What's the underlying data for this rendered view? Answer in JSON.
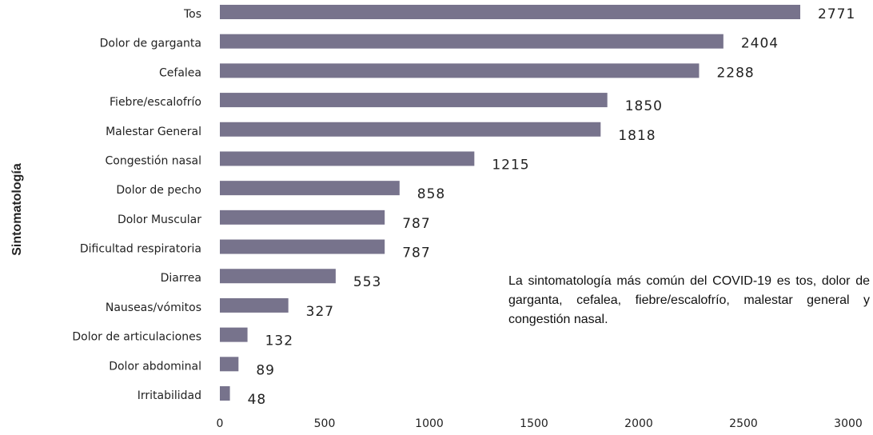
{
  "chart_data": {
    "type": "bar",
    "orientation": "horizontal",
    "y_label": "Sintomatología",
    "categories": [
      "Tos",
      "Dolor de garganta",
      "Cefalea",
      "Fiebre/escalofrío",
      "Malestar General",
      "Congestión nasal",
      "Dolor de pecho",
      "Dolor Muscular",
      "Dificultad respiratoria",
      "Diarrea",
      "Nauseas/vómitos",
      "Dolor de articulaciones",
      "Dolor abdominal",
      "Irritabilidad"
    ],
    "values": [
      2771,
      2404,
      2288,
      1850,
      1818,
      1215,
      858,
      787,
      787,
      553,
      327,
      132,
      89,
      48
    ],
    "color": "#77738c",
    "xlim": [
      0,
      3000
    ],
    "xticks": [
      0,
      500,
      1000,
      1500,
      2000,
      2500,
      3000
    ],
    "grid": false,
    "annotation": "La sintomatología más común del COVID-19 es tos, dolor de garganta, cefalea, fiebre/escalofrío, malestar general y congestión nasal."
  }
}
